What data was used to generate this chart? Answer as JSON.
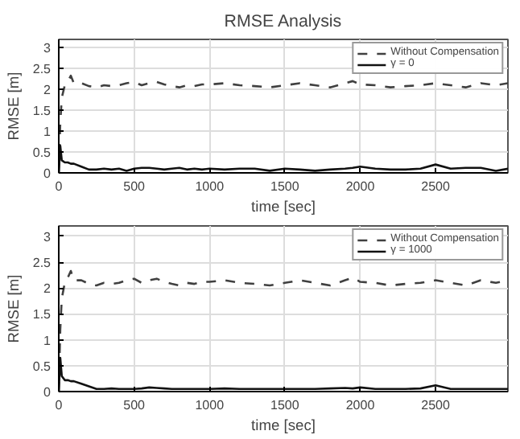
{
  "chart_data": [
    {
      "type": "line",
      "title": "RMSE Analysis",
      "xlabel": "time [sec]",
      "ylabel": "RMSE [m]",
      "xlim": [
        0,
        2980
      ],
      "ylim": [
        0,
        3.2
      ],
      "xticks": [
        0,
        500,
        1000,
        1500,
        2000,
        2500
      ],
      "yticks": [
        0,
        0.5,
        1,
        1.5,
        2,
        2.5,
        3
      ],
      "grid": true,
      "legend": "top right",
      "marker": "none",
      "x": [
        0,
        10,
        20,
        40,
        60,
        80,
        100,
        150,
        200,
        250,
        300,
        350,
        400,
        450,
        500,
        550,
        600,
        650,
        700,
        750,
        800,
        850,
        900,
        950,
        1000,
        1100,
        1200,
        1300,
        1400,
        1500,
        1600,
        1700,
        1800,
        1900,
        1950,
        2000,
        2100,
        2200,
        2300,
        2400,
        2500,
        2600,
        2700,
        2800,
        2900,
        2980
      ],
      "series": [
        {
          "name": "Without Compensation",
          "color": "#404040",
          "line_style": "dashed",
          "values": [
            0,
            1.2,
            1.8,
            2.1,
            2.2,
            2.33,
            2.15,
            2.15,
            2.08,
            2.05,
            2.1,
            2.08,
            2.1,
            2.15,
            2.18,
            2.1,
            2.15,
            2.18,
            2.12,
            2.08,
            2.05,
            2.1,
            2.08,
            2.12,
            2.12,
            2.15,
            2.1,
            2.08,
            2.05,
            2.1,
            2.15,
            2.1,
            2.05,
            2.15,
            2.2,
            2.12,
            2.1,
            2.05,
            2.08,
            2.1,
            2.15,
            2.1,
            2.05,
            2.15,
            2.1,
            2.15
          ]
        },
        {
          "name": "γ = 0",
          "color": "#111111",
          "line_style": "solid",
          "values": [
            0,
            0.65,
            0.3,
            0.25,
            0.25,
            0.22,
            0.22,
            0.15,
            0.08,
            0.08,
            0.1,
            0.08,
            0.1,
            0.05,
            0.1,
            0.12,
            0.12,
            0.1,
            0.08,
            0.1,
            0.12,
            0.08,
            0.1,
            0.08,
            0.1,
            0.08,
            0.1,
            0.1,
            0.05,
            0.1,
            0.08,
            0.05,
            0.08,
            0.1,
            0.12,
            0.15,
            0.1,
            0.08,
            0.08,
            0.1,
            0.2,
            0.1,
            0.12,
            0.12,
            0.05,
            0.1
          ]
        }
      ]
    },
    {
      "type": "line",
      "xlabel": "time [sec]",
      "ylabel": "RMSE [m]",
      "xlim": [
        0,
        2980
      ],
      "ylim": [
        0,
        3.2
      ],
      "xticks": [
        0,
        500,
        1000,
        1500,
        2000,
        2500
      ],
      "yticks": [
        0,
        0.5,
        1,
        1.5,
        2,
        2.5,
        3
      ],
      "grid": true,
      "legend": "top right",
      "marker": "none",
      "x": [
        0,
        10,
        20,
        40,
        60,
        80,
        100,
        150,
        200,
        250,
        300,
        350,
        400,
        450,
        500,
        550,
        600,
        650,
        700,
        750,
        800,
        850,
        900,
        950,
        1000,
        1100,
        1200,
        1300,
        1400,
        1500,
        1600,
        1700,
        1800,
        1900,
        1950,
        2000,
        2100,
        2200,
        2300,
        2400,
        2500,
        2600,
        2700,
        2800,
        2900,
        2980
      ],
      "series": [
        {
          "name": "Without Compensation",
          "color": "#404040",
          "line_style": "dashed",
          "values": [
            0,
            1.2,
            1.8,
            2.1,
            2.2,
            2.33,
            2.15,
            2.15,
            2.08,
            2.05,
            2.1,
            2.08,
            2.1,
            2.15,
            2.18,
            2.1,
            2.15,
            2.18,
            2.12,
            2.08,
            2.05,
            2.1,
            2.08,
            2.12,
            2.12,
            2.15,
            2.1,
            2.08,
            2.05,
            2.1,
            2.15,
            2.1,
            2.05,
            2.15,
            2.2,
            2.12,
            2.1,
            2.05,
            2.08,
            2.1,
            2.15,
            2.1,
            2.05,
            2.15,
            2.1,
            2.15
          ]
        },
        {
          "name": "γ = 1000",
          "color": "#111111",
          "line_style": "solid",
          "values": [
            0,
            0.65,
            0.3,
            0.22,
            0.22,
            0.2,
            0.2,
            0.15,
            0.1,
            0.05,
            0.05,
            0.06,
            0.05,
            0.05,
            0.05,
            0.06,
            0.08,
            0.07,
            0.06,
            0.05,
            0.05,
            0.05,
            0.05,
            0.05,
            0.05,
            0.06,
            0.05,
            0.05,
            0.05,
            0.05,
            0.05,
            0.05,
            0.06,
            0.07,
            0.06,
            0.08,
            0.05,
            0.05,
            0.05,
            0.06,
            0.12,
            0.05,
            0.05,
            0.05,
            0.05,
            0.05
          ]
        }
      ]
    }
  ]
}
